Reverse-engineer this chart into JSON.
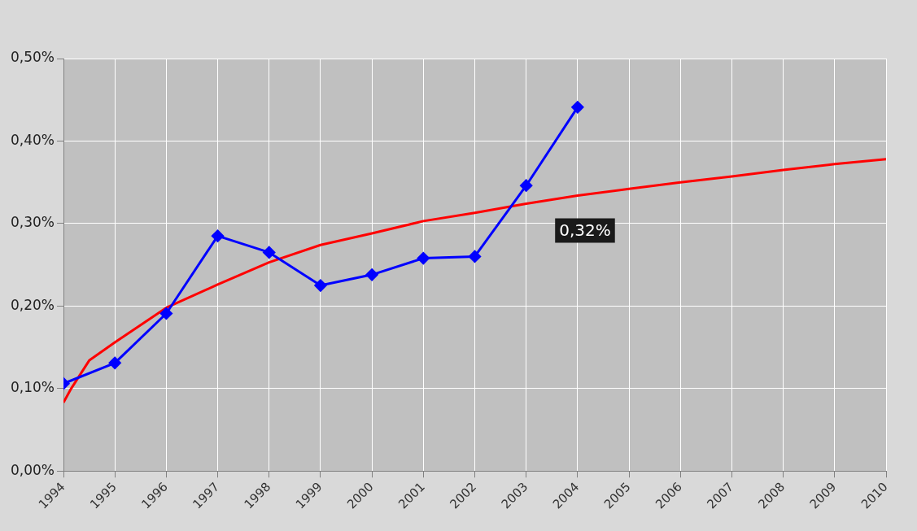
{
  "chart_data": {
    "type": "line",
    "xlim": [
      1994,
      2010
    ],
    "xticks": [
      1994,
      1995,
      1996,
      1997,
      1998,
      1999,
      2000,
      2001,
      2002,
      2003,
      2004,
      2005,
      2006,
      2007,
      2008,
      2009,
      2010
    ],
    "ylim": [
      0,
      0.5
    ],
    "yticks": [
      {
        "value": 0,
        "label": "0,00%"
      },
      {
        "value": 0.1,
        "label": "0,10%"
      },
      {
        "value": 0.2,
        "label": "0,20%"
      },
      {
        "value": 0.3,
        "label": "0,30%"
      },
      {
        "value": 0.4,
        "label": "0,40%"
      },
      {
        "value": 0.5,
        "label": "0,50%"
      }
    ],
    "grid": true,
    "legend": false,
    "line_style": "solid",
    "annotations": [
      "0,32%"
    ],
    "series": [
      {
        "color": "#0000ff",
        "marker": "diamond",
        "x": [
          1994,
          1995,
          1996,
          1997,
          1998,
          1999,
          2000,
          2001,
          2002,
          2003,
          2004
        ],
        "values": [
          0.106,
          0.131,
          0.191,
          0.285,
          0.265,
          0.225,
          0.238,
          0.258,
          0.26,
          0.346,
          0.441
        ]
      },
      {
        "color": "#ff0000",
        "marker": "none",
        "x": [
          1994,
          1994.15,
          1994.5,
          1995,
          1996,
          1997,
          1998,
          1999,
          2000,
          2001,
          2002,
          2003,
          2004,
          2005,
          2006,
          2007,
          2008,
          2009,
          2010
        ],
        "values": [
          0.083,
          0.1,
          0.134,
          0.156,
          0.198,
          0.226,
          0.253,
          0.274,
          0.288,
          0.303,
          0.313,
          0.324,
          0.334,
          0.342,
          0.35,
          0.357,
          0.365,
          0.372,
          0.378
        ]
      }
    ]
  }
}
